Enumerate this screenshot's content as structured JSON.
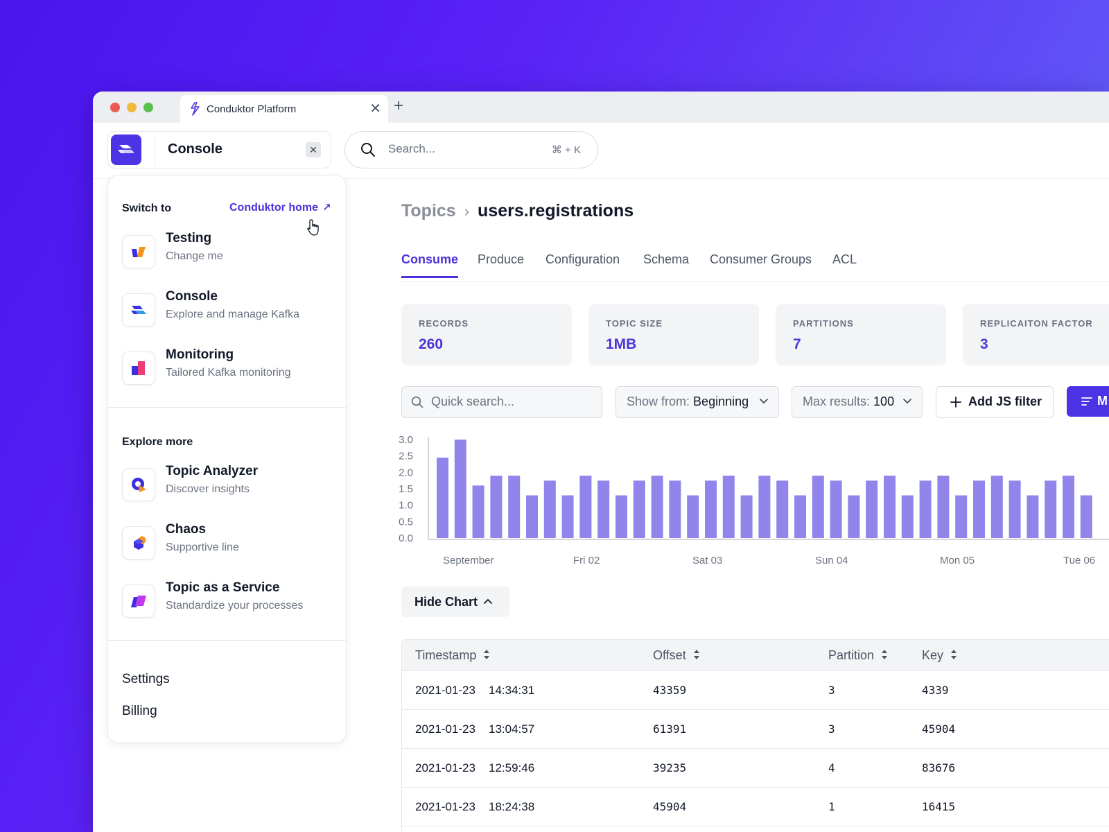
{
  "browser": {
    "tab_title": "Conduktor Platform",
    "new_tab": "+",
    "close_tab": "✕"
  },
  "header": {
    "app_name": "Console",
    "app_close": "✕",
    "search_placeholder": "Search...",
    "search_shortcut": "⌘ + K"
  },
  "menu": {
    "switch_to_title": "Switch to",
    "home_link": "Conduktor home",
    "home_link_arrow": "↗",
    "switch_items": [
      {
        "label": "Testing",
        "sub": "Change me",
        "icon": "testing-icon"
      },
      {
        "label": "Console",
        "sub": "Explore and manage Kafka",
        "icon": "console-icon"
      },
      {
        "label": "Monitoring",
        "sub": "Tailored Kafka monitoring",
        "icon": "monitoring-icon"
      }
    ],
    "explore_title": "Explore more",
    "explore_items": [
      {
        "label": "Topic Analyzer",
        "sub": "Discover insights",
        "icon": "topic-analyzer-icon"
      },
      {
        "label": "Chaos",
        "sub": "Supportive line",
        "icon": "chaos-icon"
      },
      {
        "label": "Topic as a Service",
        "sub": "Standardize your processes",
        "icon": "topic-as-a-service-icon"
      }
    ],
    "settings": "Settings",
    "billing": "Billing"
  },
  "page": {
    "breadcrumb_root": "Topics",
    "breadcrumb_sep": "›",
    "breadcrumb_current": "users.registrations",
    "tabs": [
      "Consume",
      "Produce",
      "Configuration",
      "Schema",
      "Consumer Groups",
      "ACL"
    ],
    "active_tab": "Consume"
  },
  "stats": [
    {
      "label": "RECORDS",
      "value": "260"
    },
    {
      "label": "TOPIC SIZE",
      "value": "1MB"
    },
    {
      "label": "PARTITIONS",
      "value": "7"
    },
    {
      "label": "REPLICAITON FACTOR",
      "value": "3"
    }
  ],
  "controls": {
    "quick_search_placeholder": "Quick search...",
    "show_from_label": "Show from:",
    "show_from_value": "Beginning",
    "max_results_label": "Max results:",
    "max_results_value": "100",
    "add_js_filter": "Add JS filter",
    "primary_button_partial": "M",
    "hide_chart": "Hide Chart"
  },
  "chart_data": {
    "type": "bar",
    "ylim": [
      0,
      3.0
    ],
    "yticks": [
      "0.0",
      "0.5",
      "1.0",
      "1.5",
      "2.0",
      "2.5",
      "3.0"
    ],
    "xtick_labels": [
      "September",
      "Fri 02",
      "Sat 03",
      "Sun 04",
      "Mon 05",
      "Tue 06"
    ],
    "values": [
      2.45,
      3.0,
      1.6,
      1.9,
      1.9,
      1.3,
      1.75,
      1.3,
      1.9,
      1.75,
      1.3,
      1.75,
      1.9,
      1.75,
      1.3,
      1.75,
      1.9,
      1.3,
      1.9,
      1.75,
      1.3,
      1.9,
      1.75,
      1.3,
      1.75,
      1.9,
      1.3,
      1.75,
      1.9,
      1.3,
      1.75,
      1.9,
      1.75,
      1.3,
      1.75,
      1.9,
      1.3
    ],
    "bar_color": "#9184ea"
  },
  "table": {
    "columns": [
      "Timestamp",
      "Offset",
      "Partition",
      "Key"
    ],
    "rows": [
      {
        "date": "2021-01-23",
        "time": "14:34:31",
        "offset": "43359",
        "partition": "3",
        "key": "4339"
      },
      {
        "date": "2021-01-23",
        "time": "13:04:57",
        "offset": "61391",
        "partition": "3",
        "key": "45904"
      },
      {
        "date": "2021-01-23",
        "time": "12:59:46",
        "offset": "39235",
        "partition": "4",
        "key": "83676"
      },
      {
        "date": "2021-01-23",
        "time": "18:24:38",
        "offset": "45904",
        "partition": "1",
        "key": "16415"
      }
    ]
  },
  "colors": {
    "accent": "#4c33d9",
    "primary_button": "#4c33e6",
    "bar": "#9184ea",
    "background_gradient_start": "#4a14ef",
    "background_gradient_end": "#5a8ef8"
  }
}
